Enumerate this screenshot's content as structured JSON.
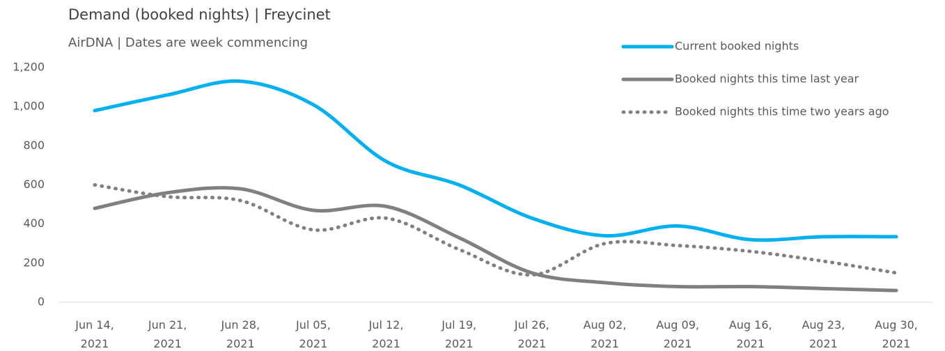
{
  "chart_data": {
    "type": "line",
    "title": "Demand (booked nights) | Freycinet",
    "subtitle": "AirDNA | Dates are week commencing",
    "categories": [
      "Jun 14, 2021",
      "Jun 21, 2021",
      "Jun 28, 2021",
      "Jul 05, 2021",
      "Jul 12, 2021",
      "Jul 19, 2021",
      "Jul 26, 2021",
      "Aug 02, 2021",
      "Aug 09, 2021",
      "Aug 16, 2021",
      "Aug 23, 2021",
      "Aug 30, 2021"
    ],
    "series": [
      {
        "name": "Current booked nights",
        "color": "#00b0f0",
        "style": "solid",
        "values": [
          980,
          1060,
          1130,
          1010,
          720,
          600,
          430,
          340,
          390,
          320,
          335,
          335
        ]
      },
      {
        "name": "Booked nights this time last year",
        "color": "#808080",
        "style": "solid",
        "values": [
          480,
          560,
          580,
          470,
          490,
          330,
          150,
          100,
          80,
          80,
          70,
          60
        ]
      },
      {
        "name": "Booked nights this time two years ago",
        "color": "#808080",
        "style": "dotted",
        "values": [
          600,
          540,
          520,
          370,
          430,
          270,
          140,
          300,
          290,
          260,
          210,
          150
        ]
      }
    ],
    "ylim": [
      0,
      1200
    ],
    "yticks": [
      0,
      200,
      400,
      600,
      800,
      {
        "value": 1000,
        "label": "1,000"
      },
      {
        "value": 1200,
        "label": "1,200"
      }
    ],
    "grid": false,
    "legend": "top-right"
  }
}
